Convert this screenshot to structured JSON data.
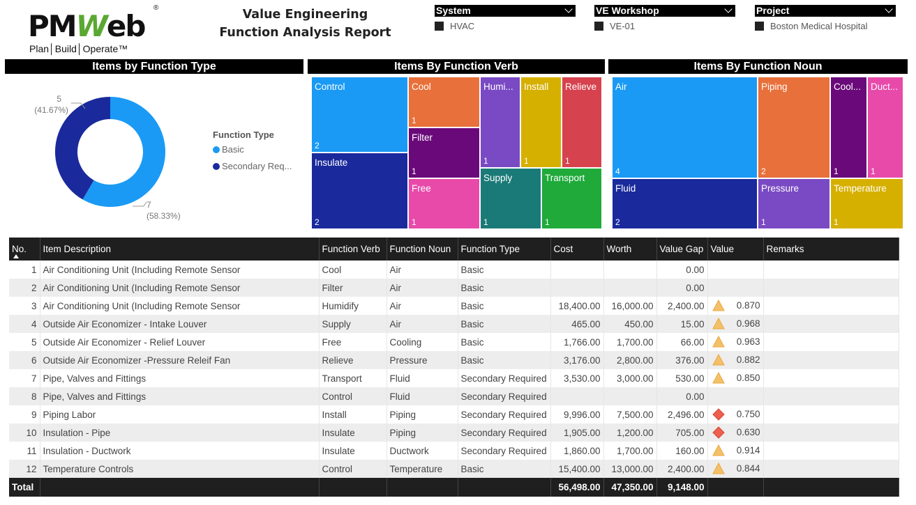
{
  "header": {
    "logo_text_a": "PM",
    "logo_text_b": "W",
    "logo_text_c": "eb",
    "logo_reg": "®",
    "logo_tagline": "Plan│Build│Operate™",
    "title_line1": "Value Engineering",
    "title_line2": "Function Analysis Report"
  },
  "slicers": [
    {
      "label": "System",
      "value": "HVAC"
    },
    {
      "label": "VE Workshop",
      "value": "VE-01"
    },
    {
      "label": "Project",
      "value": "Boston Medical Hospital"
    }
  ],
  "sections": {
    "function_type": "Items by Function Type",
    "function_verb": "Items By Function Verb",
    "function_noun": "Items By Function Noun"
  },
  "colors": {
    "basic": "#1a9af5",
    "secondary": "#1a2a9c"
  },
  "chart_data": [
    {
      "type": "pie",
      "subtype": "donut",
      "legend_title": "Function Type",
      "legend_position": "right",
      "slices": [
        {
          "name": "Basic",
          "legend_label": "Basic",
          "value": 7,
          "label_value": "7",
          "label_percent": "(58.33%)",
          "color": "#1a9af5"
        },
        {
          "name": "Secondary Required",
          "legend_label": "Secondary Req...",
          "value": 5,
          "label_value": "5",
          "label_percent": "(41.67%)",
          "color": "#1a2a9c"
        }
      ]
    },
    {
      "type": "treemap",
      "items": [
        {
          "label": "Control",
          "value": "2",
          "color": "#1a9af5"
        },
        {
          "label": "Insulate",
          "value": "2",
          "color": "#1a2a9c"
        },
        {
          "label": "Cool",
          "value": "1",
          "color": "#e8703a"
        },
        {
          "label": "Filter",
          "value": "1",
          "color": "#6a0a7a"
        },
        {
          "label": "Free",
          "value": "1",
          "color": "#e84aaa"
        },
        {
          "label": "Humi...",
          "value": "1",
          "color": "#7a4ac4"
        },
        {
          "label": "Install",
          "value": "1",
          "color": "#d6b000"
        },
        {
          "label": "Relieve",
          "value": "1",
          "color": "#d6424e"
        },
        {
          "label": "Supply",
          "value": "1",
          "color": "#1a7a78"
        },
        {
          "label": "Transport",
          "value": "1",
          "color": "#1faa3a"
        }
      ]
    },
    {
      "type": "treemap",
      "items": [
        {
          "label": "Air",
          "value": "4",
          "color": "#1a9af5"
        },
        {
          "label": "Fluid",
          "value": "2",
          "color": "#1a2a9c"
        },
        {
          "label": "Piping",
          "value": "2",
          "color": "#e8703a"
        },
        {
          "label": "Cool...",
          "value": "1",
          "color": "#6a0a7a"
        },
        {
          "label": "Duct...",
          "value": "1",
          "color": "#e84aaa"
        },
        {
          "label": "Pressure",
          "value": "1",
          "color": "#7a4ac4"
        },
        {
          "label": "Temperature",
          "value": "1",
          "color": "#d6b000"
        }
      ]
    }
  ],
  "table": {
    "columns": [
      "No.",
      "Item Description",
      "Function Verb",
      "Function Noun",
      "Function Type",
      "Cost",
      "Worth",
      "Value Gap",
      "Value",
      "Remarks"
    ],
    "rows": [
      {
        "no": "1",
        "desc": "Air Conditioning Unit (Including Remote Sensor",
        "verb": "Cool",
        "noun": "Air",
        "type": "Basic",
        "cost": "",
        "worth": "",
        "gap": "0.00",
        "indicator": "",
        "value": "",
        "remarks": ""
      },
      {
        "no": "2",
        "desc": "Air Conditioning Unit (Including Remote Sensor",
        "verb": "Filter",
        "noun": "Air",
        "type": "Basic",
        "cost": "",
        "worth": "",
        "gap": "0.00",
        "indicator": "",
        "value": "",
        "remarks": ""
      },
      {
        "no": "3",
        "desc": "Air Conditioning Unit (Including Remote Sensor",
        "verb": "Humidify",
        "noun": "Air",
        "type": "Basic",
        "cost": "18,400.00",
        "worth": "16,000.00",
        "gap": "2,400.00",
        "indicator": "warning",
        "value": "0.870",
        "remarks": ""
      },
      {
        "no": "4",
        "desc": "Outside Air Economizer - Intake Louver",
        "verb": "Supply",
        "noun": "Air",
        "type": "Basic",
        "cost": "465.00",
        "worth": "450.00",
        "gap": "15.00",
        "indicator": "warning",
        "value": "0.968",
        "remarks": ""
      },
      {
        "no": "5",
        "desc": "Outside Air Economizer - Relief Louver",
        "verb": "Free",
        "noun": "Cooling",
        "type": "Basic",
        "cost": "1,766.00",
        "worth": "1,700.00",
        "gap": "66.00",
        "indicator": "warning",
        "value": "0.963",
        "remarks": ""
      },
      {
        "no": "6",
        "desc": "Outside Air Economizer -Pressure Releif Fan",
        "verb": "Relieve",
        "noun": "Pressure",
        "type": "Basic",
        "cost": "3,176.00",
        "worth": "2,800.00",
        "gap": "376.00",
        "indicator": "warning",
        "value": "0.882",
        "remarks": ""
      },
      {
        "no": "7",
        "desc": "Pipe, Valves and Fittings",
        "verb": "Transport",
        "noun": "Fluid",
        "type": "Secondary Required",
        "cost": "3,530.00",
        "worth": "3,000.00",
        "gap": "530.00",
        "indicator": "warning",
        "value": "0.850",
        "remarks": ""
      },
      {
        "no": "8",
        "desc": "Pipe, Valves and Fittings",
        "verb": "Control",
        "noun": "Fluid",
        "type": "Secondary Required",
        "cost": "",
        "worth": "",
        "gap": "0.00",
        "indicator": "",
        "value": "",
        "remarks": ""
      },
      {
        "no": "9",
        "desc": "Piping Labor",
        "verb": "Install",
        "noun": "Piping",
        "type": "Secondary Required",
        "cost": "9,996.00",
        "worth": "7,500.00",
        "gap": "2,496.00",
        "indicator": "critical",
        "value": "0.750",
        "remarks": ""
      },
      {
        "no": "10",
        "desc": "Insulation - Pipe",
        "verb": "Insulate",
        "noun": "Piping",
        "type": "Secondary Required",
        "cost": "1,905.00",
        "worth": "1,200.00",
        "gap": "705.00",
        "indicator": "critical",
        "value": "0.630",
        "remarks": ""
      },
      {
        "no": "11",
        "desc": "Insulation - Ductwork",
        "verb": "Insulate",
        "noun": "Ductwork",
        "type": "Secondary Required",
        "cost": "1,860.00",
        "worth": "1,700.00",
        "gap": "160.00",
        "indicator": "warning",
        "value": "0.914",
        "remarks": ""
      },
      {
        "no": "12",
        "desc": "Temperature Controls",
        "verb": "Control",
        "noun": "Temperature",
        "type": "Basic",
        "cost": "15,400.00",
        "worth": "13,000.00",
        "gap": "2,400.00",
        "indicator": "warning",
        "value": "0.844",
        "remarks": ""
      }
    ],
    "total": {
      "label": "Total",
      "cost": "56,498.00",
      "worth": "47,350.00",
      "gap": "9,148.00"
    }
  },
  "indicator_colors": {
    "warning": "#f5c06a",
    "critical": "#ee5f4f"
  }
}
